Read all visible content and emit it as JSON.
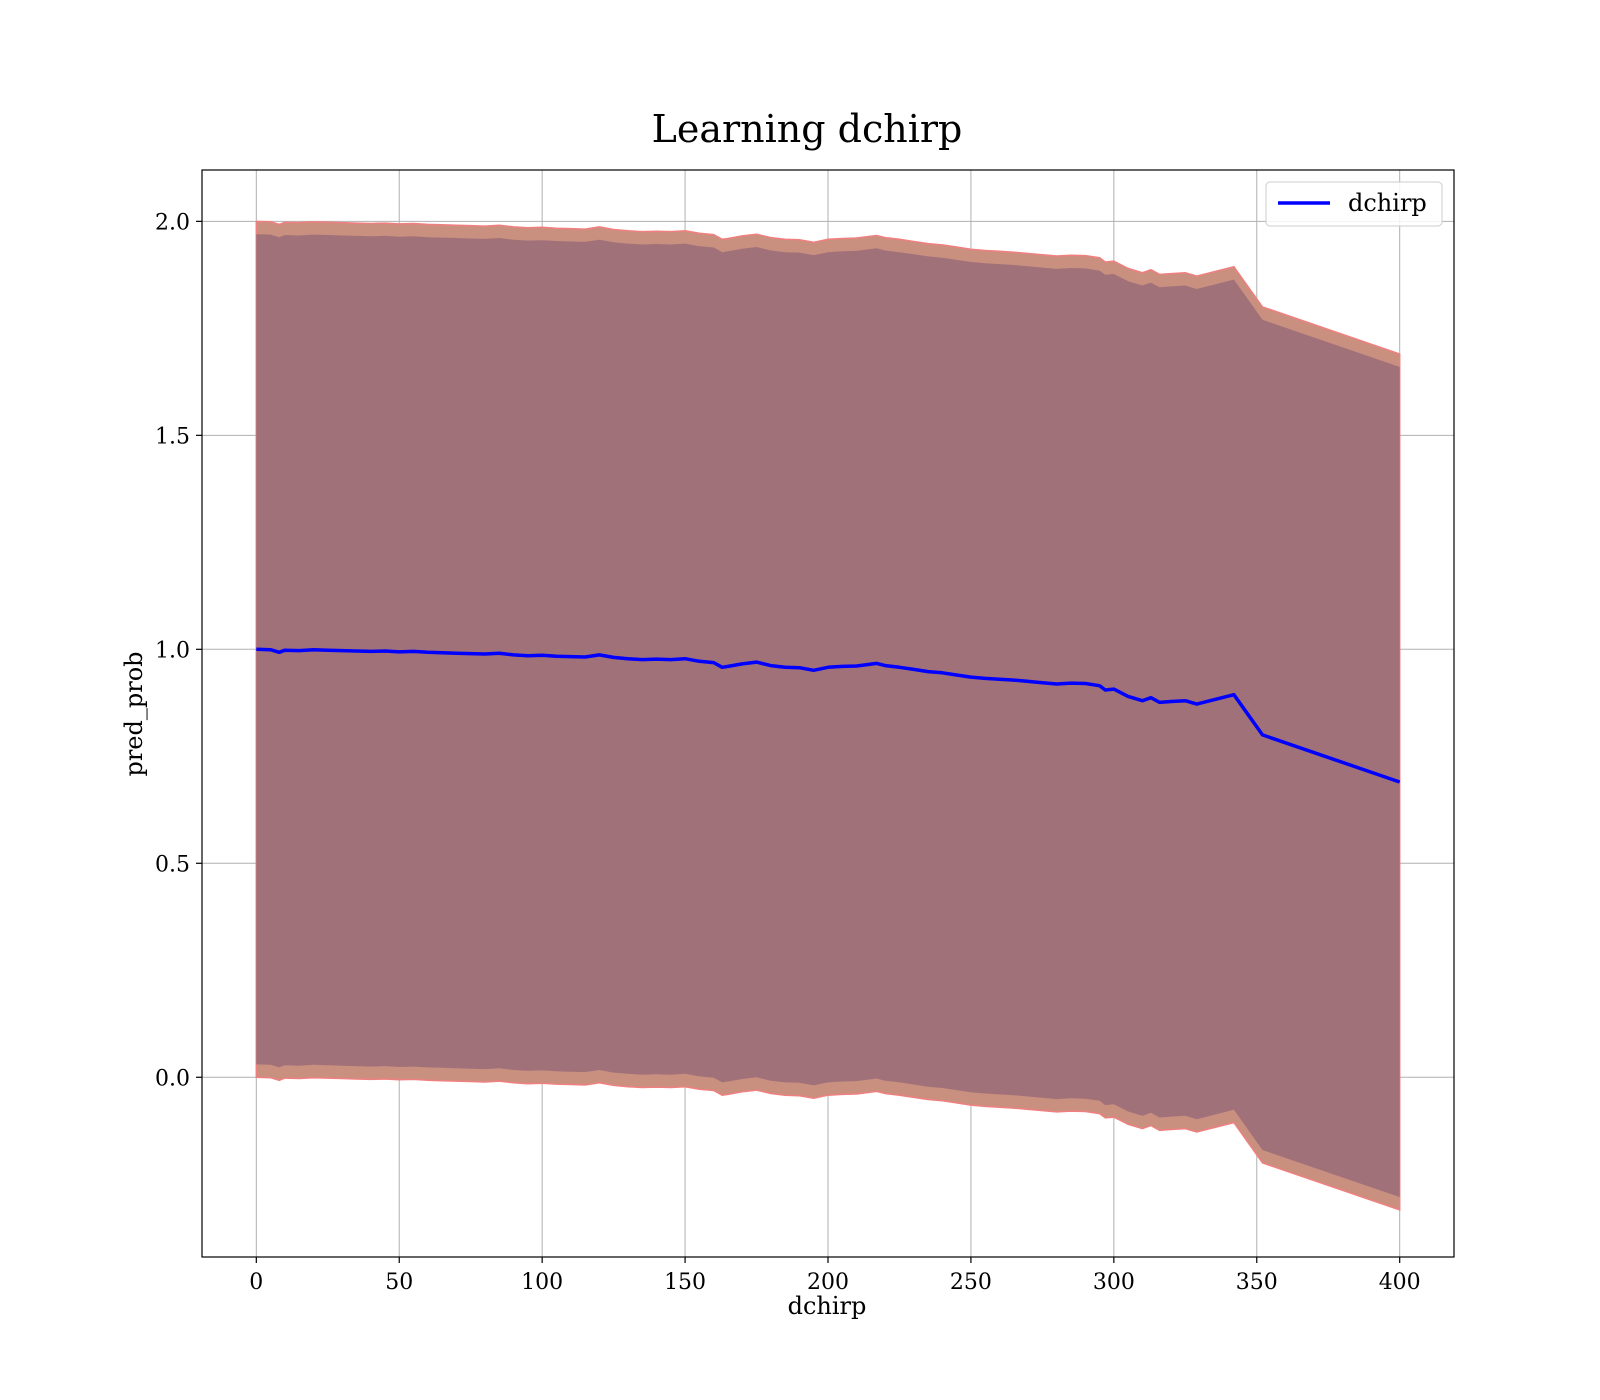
{
  "chart_data": {
    "type": "line",
    "title": "Learning dchirp",
    "xlabel": "dchirp",
    "ylabel": "pred_prob",
    "xlim": [
      -19,
      419
    ],
    "ylim": [
      -0.42,
      2.12
    ],
    "xticks": [
      0,
      50,
      100,
      150,
      200,
      250,
      300,
      350,
      400
    ],
    "yticks": [
      0.0,
      0.5,
      1.0,
      1.5,
      2.0
    ],
    "xtick_labels": [
      "0",
      "50",
      "100",
      "150",
      "200",
      "250",
      "300",
      "350",
      "400"
    ],
    "ytick_labels": [
      "0.0",
      "0.5",
      "1.0",
      "1.5",
      "2.0"
    ],
    "grid": true,
    "legend": {
      "placement": "top-right",
      "entries": [
        "dchirp"
      ]
    },
    "colors": {
      "line": "#0000ff",
      "outer_band": "#c98f7f",
      "inner_band": "#a1717a",
      "outer_edge": "#f08080"
    },
    "series": [
      {
        "name": "dchirp",
        "x": [
          0,
          5,
          8,
          10,
          15,
          20,
          25,
          30,
          35,
          40,
          45,
          50,
          55,
          60,
          65,
          70,
          75,
          80,
          85,
          90,
          95,
          100,
          105,
          110,
          115,
          120,
          125,
          130,
          135,
          140,
          145,
          150,
          155,
          160,
          163,
          165,
          170,
          175,
          180,
          185,
          190,
          195,
          200,
          205,
          210,
          217,
          220,
          225,
          230,
          235,
          240,
          245,
          250,
          255,
          260,
          265,
          270,
          275,
          280,
          285,
          290,
          295,
          297,
          300,
          305,
          310,
          313,
          316,
          320,
          325,
          329,
          342,
          352,
          400
        ],
        "y": [
          1.0,
          0.999,
          0.993,
          0.998,
          0.997,
          0.999,
          0.998,
          0.997,
          0.996,
          0.995,
          0.996,
          0.994,
          0.995,
          0.993,
          0.992,
          0.991,
          0.99,
          0.989,
          0.991,
          0.987,
          0.985,
          0.986,
          0.984,
          0.983,
          0.982,
          0.987,
          0.981,
          0.978,
          0.976,
          0.977,
          0.976,
          0.978,
          0.972,
          0.969,
          0.958,
          0.96,
          0.966,
          0.97,
          0.962,
          0.958,
          0.957,
          0.951,
          0.958,
          0.96,
          0.961,
          0.967,
          0.962,
          0.958,
          0.953,
          0.948,
          0.945,
          0.94,
          0.935,
          0.932,
          0.93,
          0.928,
          0.925,
          0.922,
          0.919,
          0.921,
          0.92,
          0.915,
          0.905,
          0.907,
          0.89,
          0.88,
          0.887,
          0.876,
          0.878,
          0.88,
          0.872,
          0.894,
          0.8,
          0.69
        ],
        "band_outer_halfwidth": [
          1.0,
          1.0,
          1.0,
          1.0,
          1.0,
          1.0,
          1.0,
          1.0,
          1.0,
          1.0,
          1.0,
          1.0,
          1.0,
          1.0,
          1.0,
          1.0,
          1.0,
          1.0,
          1.0,
          1.0,
          1.0,
          1.0,
          1.0,
          1.0,
          1.0,
          1.0,
          1.0,
          1.0,
          1.0,
          1.0,
          1.0,
          1.0,
          1.0,
          1.0,
          1.0,
          1.0,
          1.0,
          1.0,
          1.0,
          1.0,
          1.0,
          1.0,
          1.0,
          1.0,
          1.0,
          1.0,
          1.0,
          1.0,
          1.0,
          1.0,
          1.0,
          1.0,
          1.0,
          1.0,
          1.0,
          1.0,
          1.0,
          1.0,
          1.0,
          1.0,
          1.0,
          1.0,
          1.0,
          1.0,
          1.0,
          1.0,
          1.0,
          1.0,
          1.0,
          1.0,
          1.0,
          1.0,
          1.0,
          1.0
        ],
        "band_inner_halfwidth": [
          0.97,
          0.97,
          0.97,
          0.97,
          0.97,
          0.97,
          0.97,
          0.97,
          0.97,
          0.97,
          0.97,
          0.97,
          0.97,
          0.97,
          0.97,
          0.97,
          0.97,
          0.97,
          0.97,
          0.97,
          0.97,
          0.97,
          0.97,
          0.97,
          0.97,
          0.97,
          0.97,
          0.97,
          0.97,
          0.97,
          0.97,
          0.97,
          0.97,
          0.97,
          0.97,
          0.97,
          0.97,
          0.97,
          0.97,
          0.97,
          0.97,
          0.97,
          0.97,
          0.97,
          0.97,
          0.97,
          0.97,
          0.97,
          0.97,
          0.97,
          0.97,
          0.97,
          0.97,
          0.97,
          0.97,
          0.97,
          0.97,
          0.97,
          0.97,
          0.97,
          0.97,
          0.97,
          0.97,
          0.97,
          0.97,
          0.97,
          0.97,
          0.97,
          0.97,
          0.97,
          0.97,
          0.97,
          0.97,
          0.97
        ]
      }
    ]
  }
}
